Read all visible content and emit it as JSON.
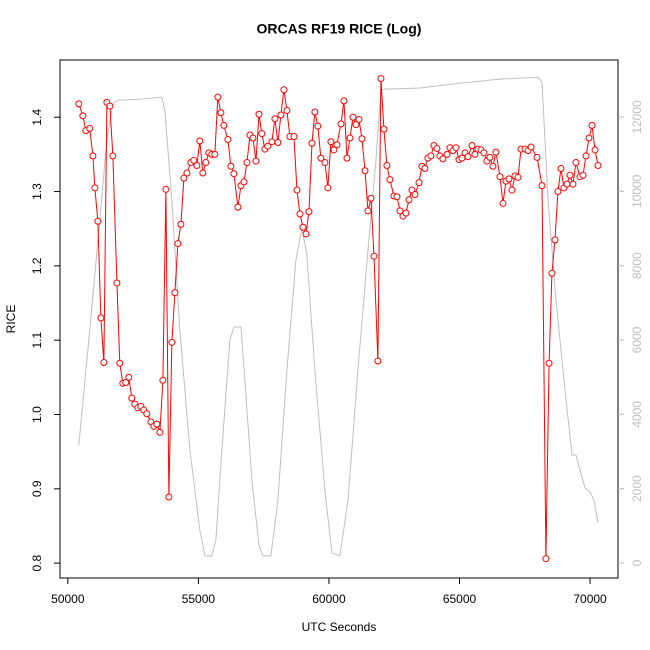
{
  "chart_data": {
    "type": "line",
    "title": "ORCAS RF19 RICE (Log)",
    "x_label": "UTC Seconds",
    "y_label": "RICE",
    "xlim": [
      49700,
      71070
    ],
    "xticks": [
      50000,
      55000,
      60000,
      65000,
      70000
    ],
    "ylim": [
      0.78,
      1.477
    ],
    "yticks": [
      {
        "value": 0.8,
        "label": "0.8"
      },
      0.9,
      {
        "value": 1,
        "label": "1.0"
      },
      1.1,
      1.2,
      1.3,
      1.4
    ],
    "y2lim": [
      -404,
      13534
    ],
    "y2ticks": [
      0,
      2000,
      4000,
      6000,
      8000,
      10000,
      12000
    ],
    "series": [
      {
        "color": "red",
        "markers": true,
        "x": [
          50420,
          50575,
          50690,
          50840,
          50960,
          51035,
          51150,
          51265,
          51380,
          51495,
          51610,
          51725,
          51880,
          51990,
          52105,
          52220,
          52335,
          52450,
          52565,
          52680,
          52795,
          52910,
          53025,
          53180,
          53295,
          53410,
          53525,
          53640,
          53755,
          53870,
          53985,
          54100,
          54215,
          54330,
          54445,
          54560,
          54710,
          54825,
          54940,
          55055,
          55170,
          55285,
          55400,
          55515,
          55630,
          55745,
          55860,
          55975,
          56130,
          56245,
          56360,
          56515,
          56630,
          56745,
          56860,
          56975,
          57090,
          57205,
          57320,
          57430,
          57545,
          57660,
          57815,
          57930,
          58045,
          58160,
          58275,
          58390,
          58505,
          58660,
          58775,
          58890,
          59005,
          59120,
          59235,
          59350,
          59460,
          59575,
          59690,
          59845,
          59960,
          60075,
          60190,
          60305,
          60460,
          60575,
          60690,
          60805,
          60920,
          61035,
          61150,
          61265,
          61380,
          61495,
          61610,
          61725,
          61875,
          61990,
          62105,
          62220,
          62335,
          62490,
          62605,
          62720,
          62835,
          62950,
          63065,
          63180,
          63295,
          63450,
          63560,
          63675,
          63790,
          63905,
          64020,
          64135,
          64250,
          64365,
          64520,
          64635,
          64750,
          64865,
          64980,
          65095,
          65210,
          65325,
          65480,
          65590,
          65705,
          65820,
          65935,
          66050,
          66165,
          66280,
          66395,
          66550,
          66665,
          66780,
          66895,
          67010,
          67125,
          67240,
          67355,
          67510,
          67625,
          67740,
          67970,
          68160,
          68310,
          68430,
          68540,
          68655,
          68770,
          68885,
          69000,
          69115,
          69230,
          69345,
          69460,
          69615,
          69730,
          69845,
          69960,
          70075,
          70190,
          70305
        ],
        "values": [
          1.418,
          1.402,
          1.382,
          1.385,
          1.348,
          1.305,
          1.26,
          1.13,
          1.07,
          1.42,
          1.415,
          1.348,
          1.177,
          1.069,
          1.042,
          1.043,
          1.05,
          1.022,
          1.014,
          1.009,
          1.011,
          1.006,
          1.001,
          0.99,
          0.984,
          0.987,
          0.976,
          1.046,
          1.303,
          0.889,
          1.097,
          1.164,
          1.23,
          1.256,
          1.318,
          1.325,
          1.339,
          1.342,
          1.335,
          1.368,
          1.325,
          1.339,
          1.352,
          1.35,
          1.35,
          1.427,
          1.406,
          1.389,
          1.37,
          1.334,
          1.324,
          1.279,
          1.308,
          1.313,
          1.339,
          1.376,
          1.372,
          1.341,
          1.404,
          1.378,
          1.357,
          1.361,
          1.367,
          1.398,
          1.366,
          1.403,
          1.437,
          1.409,
          1.374,
          1.374,
          1.302,
          1.27,
          1.252,
          1.243,
          1.273,
          1.365,
          1.407,
          1.388,
          1.345,
          1.339,
          1.305,
          1.367,
          1.356,
          1.363,
          1.391,
          1.422,
          1.345,
          1.372,
          1.4,
          1.39,
          1.397,
          1.371,
          1.328,
          1.274,
          1.291,
          1.213,
          1.072,
          1.452,
          1.384,
          1.335,
          1.316,
          1.294,
          1.293,
          1.274,
          1.267,
          1.271,
          1.289,
          1.302,
          1.296,
          1.312,
          1.334,
          1.331,
          1.345,
          1.348,
          1.362,
          1.358,
          1.348,
          1.344,
          1.35,
          1.359,
          1.355,
          1.359,
          1.343,
          1.345,
          1.352,
          1.347,
          1.362,
          1.35,
          1.357,
          1.356,
          1.352,
          1.341,
          1.346,
          1.334,
          1.353,
          1.32,
          1.284,
          1.314,
          1.317,
          1.302,
          1.321,
          1.319,
          1.357,
          1.357,
          1.355,
          1.36,
          1.346,
          1.308,
          0.806,
          1.069,
          1.19,
          1.235,
          1.3,
          1.331,
          1.305,
          1.31,
          1.322,
          1.31,
          1.339,
          1.32,
          1.322,
          1.348,
          1.372,
          1.389,
          1.356,
          1.335
        ]
      },
      {
        "color": "#bebebe",
        "axis": "y2",
        "markers": false,
        "x": [
          50420,
          50840,
          51225,
          51495,
          51725,
          51915,
          52760,
          53600,
          53715,
          53985,
          54290,
          54675,
          55055,
          55250,
          55515,
          55670,
          55900,
          56205,
          56360,
          56630,
          56780,
          57050,
          57320,
          57470,
          57775,
          58045,
          58390,
          58735,
          58965,
          59155,
          59460,
          59845,
          60115,
          60420,
          60730,
          61110,
          61495,
          61800,
          61990,
          62145,
          63485,
          65015,
          66550,
          68005,
          68160,
          68390,
          68695,
          69040,
          69310,
          69460,
          69805,
          70000,
          70150,
          70305
        ],
        "values": [
          3170,
          6270,
          9230,
          11380,
          12370,
          12450,
          12480,
          12535,
          12185,
          9765,
          6270,
          3040,
          890,
          190,
          190,
          620,
          3040,
          6000,
          6350,
          6350,
          4920,
          2230,
          480,
          190,
          190,
          1690,
          5190,
          8150,
          9010,
          8290,
          5190,
          1960,
          270,
          190,
          1690,
          5190,
          8420,
          10840,
          12720,
          12750,
          12780,
          12910,
          13020,
          13070,
          12940,
          9765,
          7075,
          4650,
          2905,
          2905,
          2020,
          1910,
          1690,
          1080
        ]
      }
    ]
  }
}
